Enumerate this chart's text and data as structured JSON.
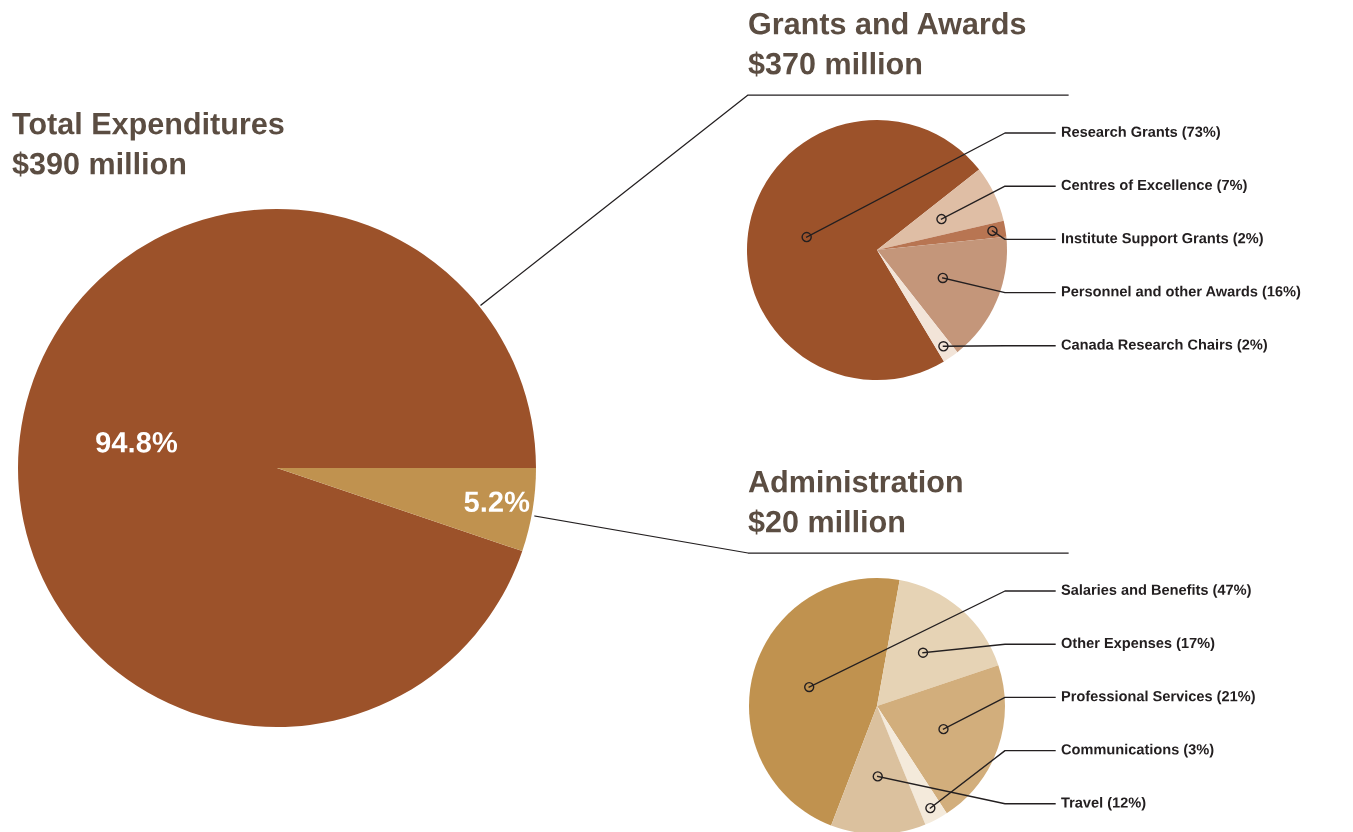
{
  "chart_data": [
    {
      "type": "pie",
      "title": "Total Expenditures",
      "subtitle": "$390 million",
      "categories": [
        null,
        null
      ],
      "values": [
        94.8,
        5.2
      ],
      "colors": [
        "#9c522a",
        "#c0924f"
      ],
      "value_labels": [
        "94.8%",
        "5.2%"
      ]
    },
    {
      "type": "pie",
      "title": "Grants and Awards",
      "subtitle": "$370 million",
      "categories": [
        "Research Grants",
        "Centres of Excellence",
        "Institute Support Grants",
        "Personnel and other Awards",
        "Canada Research Chairs"
      ],
      "values": [
        73,
        7,
        2,
        16,
        2
      ],
      "colors": [
        "#9c522a",
        "#dfbea5",
        "#b87552",
        "#c4967a",
        "#f2e4d8"
      ],
      "value_labels": [
        "(73%)",
        "(7%)",
        "(2%)",
        "(16%)",
        "(2%)"
      ]
    },
    {
      "type": "pie",
      "title": "Administration",
      "subtitle": "$20 million",
      "categories": [
        "Salaries and Benefits",
        "Other Expenses",
        "Professional Services",
        "Communications",
        "Travel"
      ],
      "values": [
        47,
        17,
        21,
        3,
        12
      ],
      "colors": [
        "#c0924f",
        "#e6d3b5",
        "#d2ae7c",
        "#f4eadb",
        "#dbc19e"
      ],
      "value_labels": [
        "(47%)",
        "(17%)",
        "(21%)",
        "(3%)",
        "(12%)"
      ]
    }
  ]
}
